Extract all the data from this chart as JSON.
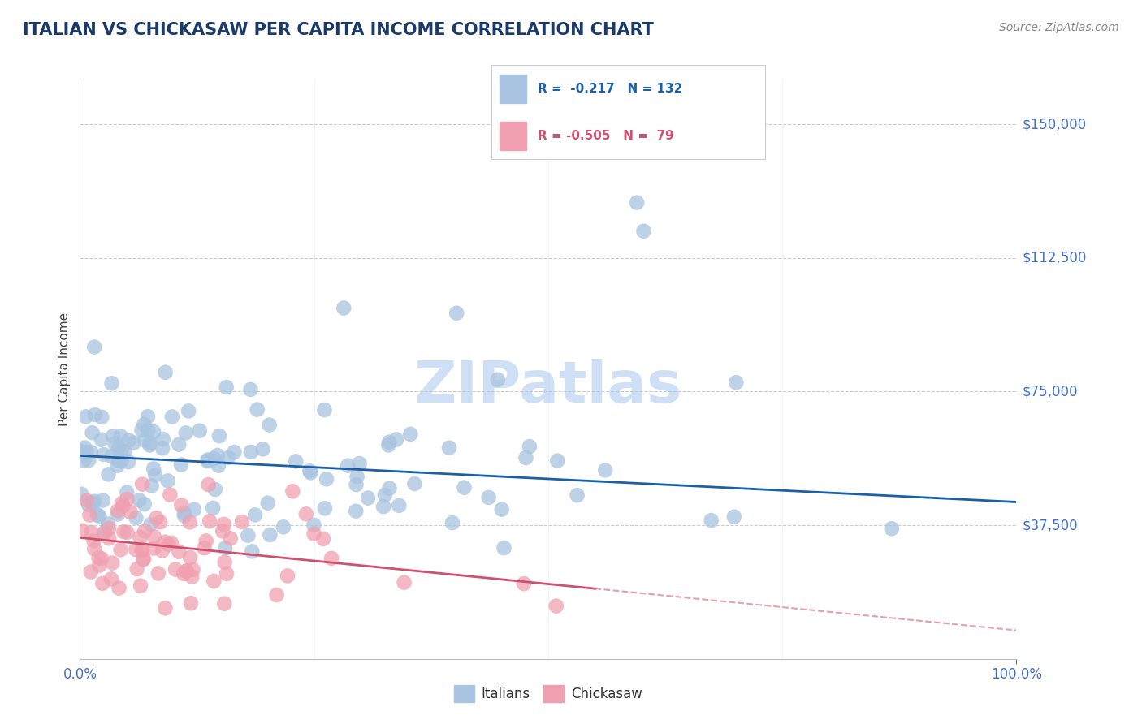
{
  "title": "ITALIAN VS CHICKASAW PER CAPITA INCOME CORRELATION CHART",
  "source": "Source: ZipAtlas.com",
  "ylabel": "Per Capita Income",
  "xlim": [
    0,
    100
  ],
  "ylim": [
    0,
    162500
  ],
  "yticks": [
    0,
    37500,
    75000,
    112500,
    150000
  ],
  "ytick_labels": [
    "",
    "$37,500",
    "$75,000",
    "$112,500",
    "$150,000"
  ],
  "italians_R": -0.217,
  "italians_N": 132,
  "chickasaw_R": -0.505,
  "chickasaw_N": 79,
  "blue_color": "#a8c4e0",
  "blue_line_color": "#1a5fa8",
  "pink_color": "#f0a0b0",
  "pink_line_color": "#d05070",
  "label_color": "#4472c4",
  "background_color": "#ffffff",
  "grid_color": "#cccccc",
  "title_color": "#1a3a6b",
  "watermark_color": "#a8c8f0"
}
